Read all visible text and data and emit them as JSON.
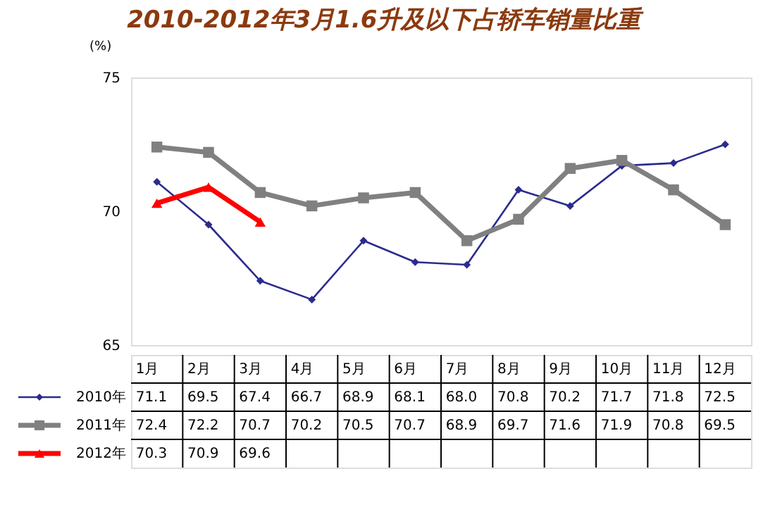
{
  "chart_data": {
    "type": "line",
    "title": "2010-2012年3月1.6升及以下占轿车销量比重",
    "ylabel": "(%)",
    "categories": [
      "1月",
      "2月",
      "3月",
      "4月",
      "5月",
      "6月",
      "7月",
      "8月",
      "9月",
      "10月",
      "11月",
      "12月"
    ],
    "series": [
      {
        "name": "2010年",
        "color": "#2b2b8f",
        "marker": "diamond",
        "values": [
          71.1,
          69.5,
          67.4,
          66.7,
          68.9,
          68.1,
          68.0,
          70.8,
          70.2,
          71.7,
          71.8,
          72.5
        ],
        "value_labels": [
          "71.1",
          "69.5",
          "67.4",
          "66.7",
          "68.9",
          "68.1",
          "68.0",
          "70.8",
          "70.2",
          "71.7",
          "71.8",
          "72.5"
        ]
      },
      {
        "name": "2011年",
        "color": "#808080",
        "marker": "square",
        "values": [
          72.4,
          72.2,
          70.7,
          70.2,
          70.5,
          70.7,
          68.9,
          69.7,
          71.6,
          71.9,
          70.8,
          69.5
        ],
        "value_labels": [
          "72.4",
          "72.2",
          "70.7",
          "70.2",
          "70.5",
          "70.7",
          "68.9",
          "69.7",
          "71.6",
          "71.9",
          "70.8",
          "69.5"
        ]
      },
      {
        "name": "2012年",
        "color": "#ff0000",
        "marker": "triangle",
        "values": [
          70.3,
          70.9,
          69.6,
          null,
          null,
          null,
          null,
          null,
          null,
          null,
          null,
          null
        ],
        "value_labels": [
          "70.3",
          "70.9",
          "69.6",
          null,
          null,
          null,
          null,
          null,
          null,
          null,
          null,
          null
        ]
      }
    ],
    "ylim": [
      65,
      75
    ],
    "yticks": [
      65,
      70,
      75
    ],
    "grid": false,
    "legend": "bottom"
  }
}
